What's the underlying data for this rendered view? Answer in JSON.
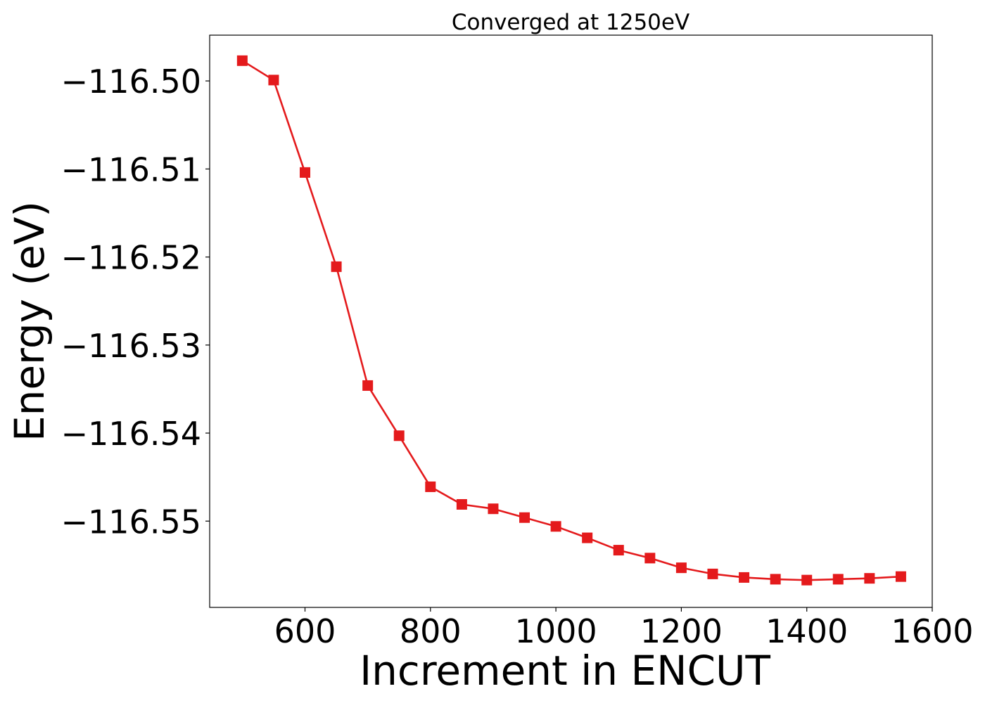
{
  "chart_data": {
    "type": "line",
    "title": "Converged at 1250eV",
    "xlabel": "Increment in ENCUT",
    "ylabel": "Energy (eV)",
    "xlim": [
      448,
      1600
    ],
    "ylim": [
      -116.5598,
      -116.4948
    ],
    "xticks": [
      600,
      800,
      1000,
      1200,
      1400,
      1600
    ],
    "xtick_labels": [
      "600",
      "800",
      "1000",
      "1200",
      "1400",
      "1600"
    ],
    "yticks": [
      -116.5,
      -116.51,
      -116.52,
      -116.53,
      -116.54,
      -116.55
    ],
    "ytick_labels": [
      "−116.50",
      "−116.51",
      "−116.52",
      "−116.53",
      "−116.54",
      "−116.55"
    ],
    "grid": false,
    "series": [
      {
        "marker": "square",
        "color": "#e41a1c",
        "x": [
          500,
          550,
          600,
          650,
          700,
          750,
          800,
          850,
          900,
          950,
          1000,
          1050,
          1100,
          1150,
          1200,
          1250,
          1300,
          1350,
          1400,
          1450,
          1500,
          1550
        ],
        "y": [
          -116.4977,
          -116.4999,
          -116.5104,
          -116.5211,
          -116.5346,
          -116.5403,
          -116.5461,
          -116.5481,
          -116.5486,
          -116.5496,
          -116.5506,
          -116.5519,
          -116.5533,
          -116.5542,
          -116.5553,
          -116.556,
          -116.5564,
          -116.5566,
          -116.5567,
          -116.5566,
          -116.5565,
          -116.5563
        ]
      }
    ]
  }
}
